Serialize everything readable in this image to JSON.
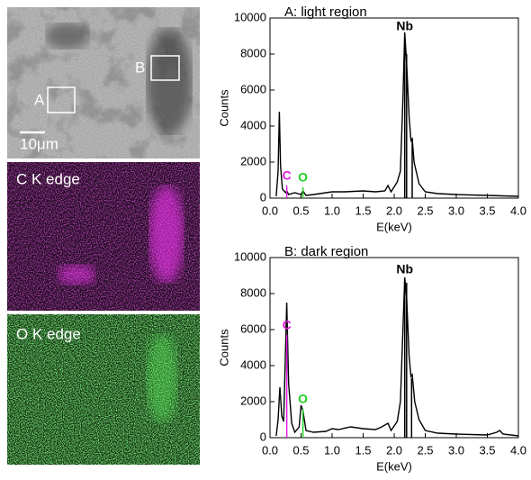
{
  "panels": {
    "sem_box_a": "A",
    "sem_box_b": "B",
    "scale_bar": "10μm",
    "c_map": "C K edge",
    "o_map": "O K edge"
  },
  "chart_data": [
    {
      "type": "line",
      "title": "A: light region",
      "xlabel": "E(keV)",
      "ylabel": "Counts",
      "x": [
        0.1,
        0.13,
        0.15,
        0.17,
        0.2,
        0.25,
        0.27,
        0.3,
        0.4,
        0.5,
        0.53,
        0.58,
        0.7,
        0.8,
        1.0,
        1.2,
        1.5,
        1.7,
        1.85,
        1.9,
        1.95,
        2.05,
        2.1,
        2.14,
        2.17,
        2.2,
        2.24,
        2.27,
        2.29,
        2.32,
        2.4,
        2.5,
        2.7,
        3.0,
        3.5,
        4.0
      ],
      "values": [
        100,
        1500,
        4800,
        1800,
        500,
        300,
        400,
        200,
        300,
        200,
        400,
        150,
        200,
        250,
        350,
        350,
        400,
        350,
        400,
        700,
        350,
        900,
        1500,
        5500,
        9200,
        7500,
        4500,
        3200,
        3300,
        2000,
        800,
        350,
        250,
        200,
        150,
        100
      ],
      "color": "#000000",
      "peaks": [
        {
          "label": "C",
          "color": "#e01fe0",
          "lines": [
            {
              "x": 0.27,
              "y": 700
            }
          ]
        },
        {
          "label": "O",
          "color": "#22d022",
          "lines": [
            {
              "x": 0.53,
              "y": 600
            }
          ]
        },
        {
          "label": "Nb",
          "color": "#000000",
          "lines": [
            {
              "x": 2.17,
              "y": 9000
            },
            {
              "x": 2.2,
              "y": 8000
            },
            {
              "x": 2.29,
              "y": 3300
            }
          ]
        }
      ],
      "xlim": [
        0,
        4
      ],
      "ylim": [
        0,
        10000
      ],
      "xticks": [
        {
          "value": 0,
          "label": "0.0"
        },
        0.5,
        {
          "value": 1,
          "label": "1.0"
        },
        1.5,
        {
          "value": 2,
          "label": "2.0"
        },
        2.5,
        {
          "value": 3,
          "label": "3.0"
        },
        3.5,
        {
          "value": 4,
          "label": "4.0"
        }
      ],
      "yticks": [
        0,
        2000,
        4000,
        6000,
        8000,
        10000
      ]
    },
    {
      "type": "line",
      "title": "B: dark region",
      "xlabel": "E(keV)",
      "ylabel": "Counts",
      "x": [
        0.1,
        0.13,
        0.16,
        0.19,
        0.22,
        0.25,
        0.27,
        0.3,
        0.35,
        0.4,
        0.47,
        0.5,
        0.53,
        0.58,
        0.7,
        0.9,
        1.0,
        1.1,
        1.3,
        1.5,
        1.7,
        1.8,
        1.9,
        1.95,
        2.05,
        2.1,
        2.14,
        2.17,
        2.2,
        2.24,
        2.27,
        2.29,
        2.33,
        2.4,
        2.5,
        2.7,
        3.0,
        3.5,
        3.65,
        3.7,
        3.75,
        4.0
      ],
      "values": [
        100,
        1000,
        2800,
        1200,
        900,
        5000,
        7500,
        3000,
        800,
        300,
        600,
        1800,
        1500,
        400,
        300,
        350,
        500,
        450,
        600,
        500,
        450,
        600,
        800,
        400,
        900,
        2000,
        6000,
        8900,
        7800,
        4500,
        3400,
        3500,
        2000,
        1000,
        400,
        250,
        200,
        150,
        300,
        400,
        200,
        100
      ],
      "color": "#000000",
      "peaks": [
        {
          "label": "C",
          "color": "#e01fe0",
          "lines": [
            {
              "x": 0.27,
              "y": 5700
            }
          ]
        },
        {
          "label": "O",
          "color": "#22d022",
          "lines": [
            {
              "x": 0.53,
              "y": 1600
            }
          ]
        },
        {
          "label": "Nb",
          "color": "#000000",
          "lines": [
            {
              "x": 2.17,
              "y": 8800
            },
            {
              "x": 2.2,
              "y": 8600
            },
            {
              "x": 2.28,
              "y": 3300
            }
          ]
        }
      ],
      "xlim": [
        0,
        4
      ],
      "ylim": [
        0,
        10000
      ],
      "xticks": [
        {
          "value": 0,
          "label": "0.0"
        },
        0.5,
        {
          "value": 1,
          "label": "1.0"
        },
        1.5,
        {
          "value": 2,
          "label": "2.0"
        },
        2.5,
        {
          "value": 3,
          "label": "3.0"
        },
        3.5,
        {
          "value": 4,
          "label": "4.0"
        }
      ],
      "yticks": [
        0,
        2000,
        4000,
        6000,
        8000,
        10000
      ]
    }
  ]
}
